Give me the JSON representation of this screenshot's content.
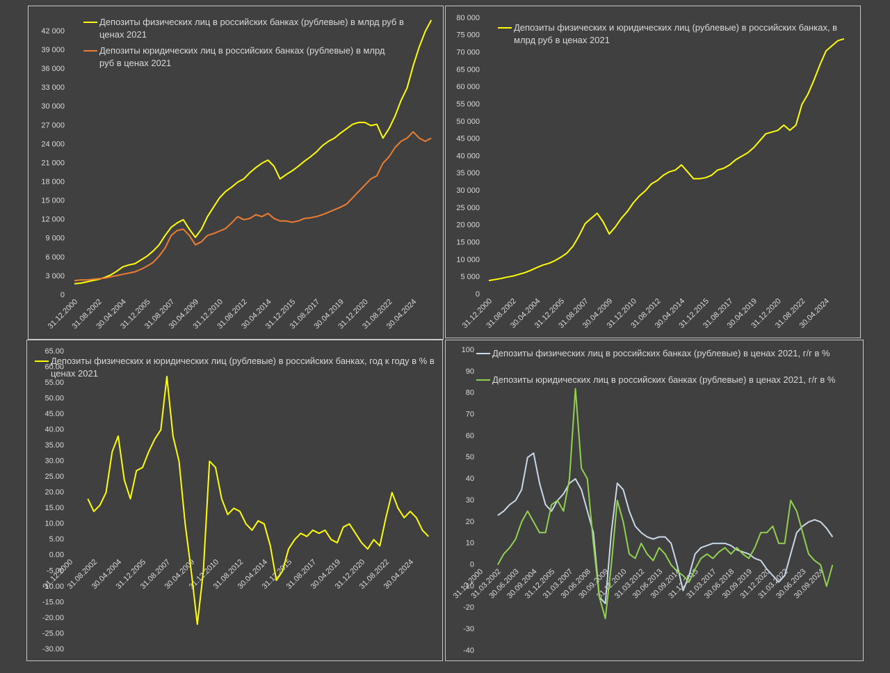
{
  "chart_data": [
    {
      "type": "line",
      "categories": [
        "31.12.2000",
        null,
        null,
        null,
        "31.08.2002",
        null,
        null,
        null,
        "30.04.2004",
        null,
        null,
        null,
        "31.12.2005",
        null,
        null,
        null,
        "31.08.2007",
        null,
        null,
        null,
        "30.04.2009",
        null,
        null,
        null,
        "31.12.2010",
        null,
        null,
        null,
        "31.08.2012",
        null,
        null,
        null,
        "30.04.2014",
        null,
        null,
        null,
        "31.12.2015",
        null,
        null,
        null,
        "31.08.2017",
        null,
        null,
        null,
        "30.04.2019",
        null,
        null,
        null,
        "31.12.2020",
        null,
        null,
        null,
        "31.08.2022",
        null,
        null,
        null,
        "30.04.2024",
        null,
        null,
        null
      ],
      "series": [
        {
          "name": "Депозиты физических лиц в российских банках (рублевые) в млрд руб в ценах 2021",
          "color": "#ffff00",
          "values": [
            1800,
            1900,
            2100,
            2300,
            2500,
            2800,
            3200,
            3800,
            4500,
            4800,
            5000,
            5600,
            6200,
            7000,
            8000,
            9500,
            10800,
            11500,
            12000,
            10500,
            9200,
            10500,
            12500,
            14000,
            15500,
            16500,
            17200,
            18000,
            18500,
            19500,
            20300,
            21000,
            21500,
            20500,
            18500,
            19200,
            19800,
            20500,
            21300,
            22000,
            22800,
            23800,
            24500,
            25000,
            25800,
            26500,
            27200,
            27500,
            27500,
            27000,
            27200,
            25000,
            26500,
            28500,
            31000,
            33000,
            36500,
            39500,
            42000,
            43800
          ]
        },
        {
          "name": "Депозиты юридических лиц в российских банках (рублевые) в млрд руб в ценах 2021",
          "color": "#ed7d31",
          "values": [
            2300,
            2400,
            2400,
            2500,
            2600,
            2700,
            2900,
            3100,
            3300,
            3500,
            3700,
            4100,
            4600,
            5200,
            6200,
            7500,
            9500,
            10300,
            10500,
            9500,
            8000,
            8500,
            9500,
            9800,
            10200,
            10600,
            11500,
            12500,
            12000,
            12200,
            12800,
            12500,
            13000,
            12200,
            11800,
            11800,
            11600,
            11800,
            12200,
            12300,
            12500,
            12800,
            13200,
            13600,
            14000,
            14500,
            15500,
            16500,
            17500,
            18500,
            19000,
            21000,
            22000,
            23500,
            24500,
            25000,
            26000,
            25000,
            24500,
            25000
          ]
        }
      ],
      "ylim": [
        0,
        45000
      ],
      "yticks": [
        0,
        {
          "value": 3000,
          "label": "3 000"
        },
        {
          "value": 6000,
          "label": "6 000"
        },
        {
          "value": 9000,
          "label": "9 000"
        },
        {
          "value": 12000,
          "label": "12 000"
        },
        {
          "value": 15000,
          "label": "15 000"
        },
        {
          "value": 18000,
          "label": "18 000"
        },
        {
          "value": 21000,
          "label": "21 000"
        },
        {
          "value": 24000,
          "label": "24 000"
        },
        {
          "value": 27000,
          "label": "27 000"
        },
        {
          "value": 30000,
          "label": "30 000"
        },
        {
          "value": 33000,
          "label": "33 000"
        },
        {
          "value": 36000,
          "label": "36 000"
        },
        {
          "value": 39000,
          "label": "39 000"
        },
        {
          "value": 42000,
          "label": "42 000"
        }
      ]
    },
    {
      "type": "line",
      "categories": [
        "31.12.2000",
        null,
        null,
        null,
        "31.08.2002",
        null,
        null,
        null,
        "30.04.2004",
        null,
        null,
        null,
        "31.12.2005",
        null,
        null,
        null,
        "31.08.2007",
        null,
        null,
        null,
        "30.04.2009",
        null,
        null,
        null,
        "31.12.2010",
        null,
        null,
        null,
        "31.08.2012",
        null,
        null,
        null,
        "30.04.2014",
        null,
        null,
        null,
        "31.12.2015",
        null,
        null,
        null,
        "31.08.2017",
        null,
        null,
        null,
        "30.04.2019",
        null,
        null,
        null,
        "31.12.2020",
        null,
        null,
        null,
        "31.08.2022",
        null,
        null,
        null,
        "30.04.2024",
        null,
        null,
        null
      ],
      "series": [
        {
          "name": "Депозиты физических и юридических лиц (рублевые) в российских банках, в млрд руб в ценах 2021",
          "color": "#ffff00",
          "values": [
            4000,
            4300,
            4600,
            5000,
            5300,
            5800,
            6300,
            7000,
            7800,
            8500,
            9000,
            9800,
            10800,
            12000,
            14000,
            17000,
            20500,
            22000,
            23500,
            21000,
            17500,
            19500,
            22000,
            24000,
            26500,
            28500,
            30000,
            32000,
            33000,
            34500,
            35500,
            36000,
            37500,
            35500,
            33500,
            33500,
            33800,
            34500,
            36000,
            36500,
            37500,
            39000,
            40000,
            41000,
            42500,
            44500,
            46500,
            47000,
            47500,
            49000,
            47500,
            49000,
            55000,
            58000,
            62000,
            66500,
            70500,
            72000,
            73500,
            74000
          ]
        }
      ],
      "ylim": [
        0,
        80000
      ],
      "yticks": [
        0,
        {
          "value": 5000,
          "label": "5 000"
        },
        {
          "value": 10000,
          "label": "10 000"
        },
        {
          "value": 15000,
          "label": "15 000"
        },
        {
          "value": 20000,
          "label": "20 000"
        },
        {
          "value": 25000,
          "label": "25 000"
        },
        {
          "value": 30000,
          "label": "30 000"
        },
        {
          "value": 35000,
          "label": "35 000"
        },
        {
          "value": 40000,
          "label": "40 000"
        },
        {
          "value": 45000,
          "label": "45 000"
        },
        {
          "value": 50000,
          "label": "50 000"
        },
        {
          "value": 55000,
          "label": "55 000"
        },
        {
          "value": 60000,
          "label": "60 000"
        },
        {
          "value": 65000,
          "label": "65 000"
        },
        {
          "value": 70000,
          "label": "70 000"
        },
        {
          "value": 75000,
          "label": "75 000"
        },
        {
          "value": 80000,
          "label": "80 000"
        }
      ]
    },
    {
      "type": "line",
      "categories": [
        "31.12.2000",
        null,
        null,
        null,
        "31.08.2002",
        null,
        null,
        null,
        "30.04.2004",
        null,
        null,
        null,
        "31.12.2005",
        null,
        null,
        null,
        "31.08.2007",
        null,
        null,
        null,
        "30.04.2009",
        null,
        null,
        null,
        "31.12.2010",
        null,
        null,
        null,
        "31.08.2012",
        null,
        null,
        null,
        "30.04.2014",
        null,
        null,
        null,
        "31.12.2015",
        null,
        null,
        null,
        "31.08.2017",
        null,
        null,
        null,
        "30.04.2019",
        null,
        null,
        null,
        "31.12.2020",
        null,
        null,
        null,
        "31.08.2022",
        null,
        null,
        null,
        "30.04.2024",
        null,
        null,
        null
      ],
      "series": [
        {
          "name": "Депозиты физических и юридических лиц (рублевые) в российских банках, год к году в % в ценах 2021",
          "color": "#ffff00",
          "values": [
            null,
            null,
            null,
            18,
            14,
            16,
            20,
            33,
            38,
            24,
            18,
            27,
            28,
            33,
            37,
            40,
            57,
            38,
            30,
            10,
            -5,
            -22,
            -5,
            30,
            28,
            18,
            13,
            15,
            14,
            10,
            8,
            11,
            10,
            3,
            -8,
            -5,
            2,
            5,
            7,
            6,
            8,
            7,
            8,
            5,
            4,
            9,
            10,
            7,
            4,
            2,
            5,
            3,
            12,
            20,
            15,
            12,
            14,
            12,
            8,
            6
          ]
        }
      ],
      "ylim": [
        -30,
        65
      ],
      "yticks": [
        {
          "value": -30,
          "label": "-30.00"
        },
        {
          "value": -25,
          "label": "-25.00"
        },
        {
          "value": -20,
          "label": "-20.00"
        },
        {
          "value": -15,
          "label": "-15.00"
        },
        {
          "value": -10,
          "label": "-10.00"
        },
        {
          "value": -5,
          "label": "-5.00"
        },
        {
          "value": 0,
          "label": "0.00"
        },
        {
          "value": 5,
          "label": "5.00"
        },
        {
          "value": 10,
          "label": "10.00"
        },
        {
          "value": 15,
          "label": "15.00"
        },
        {
          "value": 20,
          "label": "20.00"
        },
        {
          "value": 25,
          "label": "25.00"
        },
        {
          "value": 30,
          "label": "30.00"
        },
        {
          "value": 35,
          "label": "35.00"
        },
        {
          "value": 40,
          "label": "40.00"
        },
        {
          "value": 45,
          "label": "45.00"
        },
        {
          "value": 50,
          "label": "50.00"
        },
        {
          "value": 55,
          "label": "55.00"
        },
        {
          "value": 60,
          "label": "60.00"
        },
        {
          "value": 65,
          "label": "65.00"
        }
      ]
    },
    {
      "type": "line",
      "categories": [
        "31.12.2000",
        null,
        null,
        "31.03.2002",
        null,
        null,
        "30.06.2003",
        null,
        null,
        "30.09.2004",
        null,
        null,
        "31.12.2005",
        null,
        null,
        "31.03.2007",
        null,
        null,
        "30.06.2008",
        null,
        null,
        "30.09.2009",
        null,
        null,
        "31.12.2010",
        null,
        null,
        "31.03.2012",
        null,
        null,
        "30.06.2013",
        null,
        null,
        "30.09.2014",
        null,
        null,
        "31.12.2015",
        null,
        null,
        "31.03.2017",
        null,
        null,
        "30.06.2018",
        null,
        null,
        "30.09.2019",
        null,
        null,
        "31.12.2020",
        null,
        null,
        "31.03.2022",
        null,
        null,
        "30.06.2023",
        null,
        null,
        "30.09.2024",
        null,
        null
      ],
      "series": [
        {
          "name": "Депозиты физических лиц в российских банках (рублевые) в ценах 2021, г/г в %",
          "color": "#c9d9e8",
          "values": [
            null,
            null,
            null,
            23,
            25,
            28,
            30,
            35,
            50,
            52,
            38,
            28,
            25,
            30,
            33,
            38,
            40,
            35,
            25,
            15,
            -15,
            -18,
            15,
            38,
            35,
            25,
            18,
            15,
            13,
            12,
            13,
            13,
            10,
            0,
            -12,
            -5,
            5,
            8,
            9,
            10,
            10,
            10,
            9,
            7,
            6,
            5,
            3,
            2,
            -2,
            -5,
            -8,
            -5,
            5,
            15,
            18,
            20,
            21,
            20,
            17,
            13
          ]
        },
        {
          "name": "Депозиты юридических лиц в российских банках (рублевые) в ценах 2021, г/г в %",
          "color": "#92d050",
          "values": [
            null,
            null,
            null,
            0,
            5,
            8,
            12,
            20,
            25,
            20,
            15,
            15,
            28,
            30,
            25,
            40,
            82,
            45,
            40,
            10,
            -15,
            -25,
            0,
            30,
            20,
            5,
            3,
            10,
            5,
            2,
            8,
            5,
            0,
            -3,
            -5,
            -8,
            -2,
            3,
            5,
            3,
            6,
            8,
            5,
            8,
            5,
            3,
            8,
            15,
            15,
            18,
            10,
            10,
            30,
            25,
            15,
            5,
            2,
            0,
            -10,
            0
          ]
        }
      ],
      "ylim": [
        -40,
        100
      ],
      "yticks": [
        -40,
        -30,
        -20,
        -10,
        0,
        10,
        20,
        30,
        40,
        50,
        60,
        70,
        80,
        90,
        100
      ]
    }
  ]
}
